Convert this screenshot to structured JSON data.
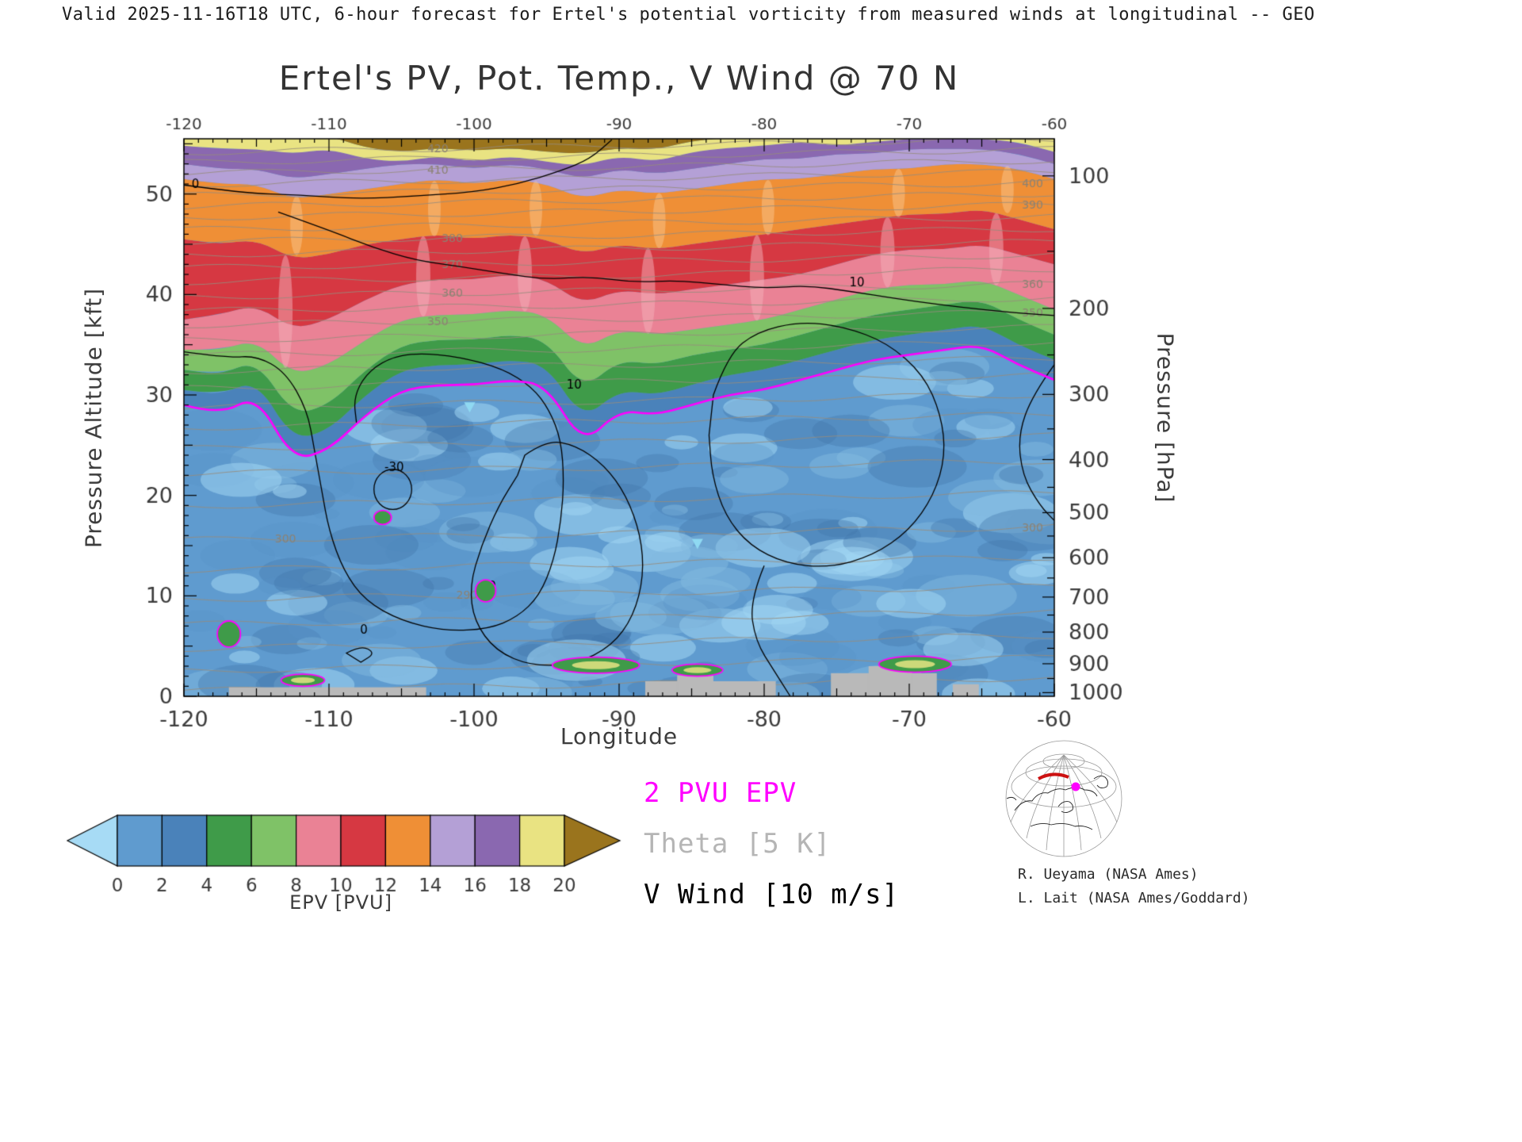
{
  "header": {
    "text": "Valid 2025-11-16T18 UTC, 6-hour forecast for Ertel's potential vorticity from measured winds at longitudinal -- GEO"
  },
  "chart": {
    "title": "Ertel's PV, Pot. Temp., V Wind @ 70 N",
    "xlabel": "Longitude",
    "ylabel_left": "Pressure Altitude [kft]",
    "ylabel_right": "Pressure [hPa]"
  },
  "legend": {
    "items": [
      {
        "label": "2 PVU EPV",
        "color": "#ff00ff"
      },
      {
        "label": "Theta [5 K]",
        "color": "#b5b5b5"
      },
      {
        "label": "V Wind [10 m/s]",
        "color": "#000000"
      }
    ]
  },
  "colorbar": {
    "label": "EPV [PVU]",
    "ticks": [
      0,
      2,
      4,
      6,
      8,
      10,
      12,
      14,
      16,
      18,
      20
    ]
  },
  "credits": {
    "line1": "R. Ueyama (NASA Ames)",
    "line2": "L. Lait (NASA Ames/Goddard)"
  },
  "chart_data": {
    "type": "heatmap",
    "title": "Ertel's PV, Pot. Temp., V Wind @ 70 N",
    "xlabel": "Longitude",
    "ylabel": "Pressure Altitude [kft]",
    "y2label": "Pressure [hPa]",
    "units": "PVU",
    "x_range": [
      -120,
      -60
    ],
    "y_range": [
      0,
      55.5
    ],
    "x_ticks": [
      -120,
      -110,
      -100,
      -90,
      -80,
      -70,
      -60
    ],
    "y_ticks": [
      0,
      10,
      20,
      30,
      40,
      50
    ],
    "y2_ticks": [
      100,
      200,
      300,
      400,
      500,
      600,
      700,
      800,
      900,
      1000
    ],
    "palette": {
      "below_0": "#a7dbf5",
      "0_2": "#5f9bcf",
      "2_4": "#4a82ba",
      "4_6": "#3f9b49",
      "6_8": "#7fc267",
      "8_10": "#ea8295",
      "10_12": "#d63842",
      "12_14": "#ef8f36",
      "14_16": "#b4a0d6",
      "16_18": "#8a68b0",
      "18_20": "#e9e382",
      "above_20": "#9a741d"
    },
    "tropopause_color": "#ff00ff",
    "terrain_color": "#b9b9b9",
    "longitudes": [
      -120,
      -117.5,
      -115,
      -112.5,
      -110,
      -107.5,
      -105,
      -102.5,
      -100,
      -97.5,
      -95,
      -92.5,
      -90,
      -87.5,
      -85,
      -82.5,
      -80,
      -77.5,
      -75,
      -72.5,
      -70,
      -67.5,
      -65,
      -62.5,
      -60
    ],
    "epv_contour_altitudes_kft": {
      "2": [
        29,
        28,
        30,
        23.5,
        24.5,
        28,
        30.5,
        31,
        31,
        31.5,
        31,
        25,
        28.5,
        28,
        29,
        30,
        30.5,
        31.5,
        32.5,
        33.5,
        34,
        34.5,
        35,
        33,
        31.5
      ],
      "4": [
        30.5,
        30,
        31.5,
        25.5,
        26.5,
        30,
        32.5,
        33,
        33,
        33.5,
        33,
        27.5,
        30.5,
        30,
        31,
        32,
        32.5,
        33.5,
        34.5,
        35.5,
        36,
        36.5,
        37,
        35,
        33.5
      ],
      "6": [
        32.5,
        32,
        33.5,
        28,
        29,
        32.5,
        35,
        35.5,
        35.5,
        36,
        35.5,
        30.5,
        33.5,
        33,
        34,
        34.5,
        35,
        36,
        37,
        38,
        38.5,
        39,
        39.5,
        37.5,
        36
      ],
      "8": [
        34.5,
        34.5,
        35.5,
        32,
        33,
        35.5,
        37.5,
        38,
        38,
        38.5,
        38,
        34.5,
        36.5,
        36,
        36.5,
        37,
        37.5,
        38.5,
        39.5,
        40.5,
        41,
        41,
        41.5,
        40,
        38.5
      ],
      "10": [
        37.5,
        38,
        39,
        36.5,
        37.5,
        39.5,
        41,
        41.5,
        41.5,
        42,
        41.5,
        39,
        40.5,
        40,
        40.5,
        41,
        41.5,
        42,
        43,
        44,
        44.5,
        44.5,
        45,
        44,
        43
      ],
      "12": [
        45.5,
        45,
        45.5,
        43.5,
        44,
        45,
        45.5,
        46,
        45.5,
        46,
        45.5,
        44,
        45,
        44.5,
        45,
        45.5,
        46,
        46.5,
        47,
        47.5,
        48,
        48,
        48.5,
        47.5,
        46.5
      ],
      "14": [
        51.5,
        51,
        51,
        49.5,
        50,
        50.5,
        51,
        51.5,
        51,
        51.5,
        51,
        49.5,
        50.5,
        50,
        50.5,
        51,
        51.5,
        51.5,
        52,
        52.5,
        52.5,
        53,
        53,
        52.5,
        51.5
      ],
      "16": [
        53,
        52.5,
        52.5,
        51.5,
        52,
        52.5,
        53,
        53,
        52.5,
        53,
        52.5,
        51.5,
        52.5,
        52,
        52.5,
        53,
        53.5,
        53.5,
        54,
        54,
        54.5,
        54.5,
        54.5,
        54,
        53
      ],
      "18": [
        54.8,
        54.5,
        54.5,
        54,
        54.5,
        53.5,
        53.2,
        53.8,
        53.2,
        53.8,
        53.2,
        52.8,
        53.8,
        53.2,
        54.2,
        54.6,
        54.8,
        55.2,
        54.8,
        55.2,
        55.5,
        55.5,
        55.5,
        55.2,
        54.2
      ],
      "20": [
        56,
        56,
        56,
        56,
        55.8,
        54.6,
        54.2,
        54.6,
        54.3,
        54.6,
        54.2,
        54,
        54.6,
        54.4,
        55.3,
        55.6,
        55.8,
        56,
        55.6,
        56,
        56,
        56,
        56,
        56,
        55.6
      ]
    },
    "theta_lines": {
      "interval_K": 5,
      "tilt_kft": 1.3,
      "lines": [
        {
          "theta": 270,
          "alt": 1.2
        },
        {
          "theta": 275,
          "alt": 3.2
        },
        {
          "theta": 280,
          "alt": 5.4
        },
        {
          "theta": 285,
          "alt": 7.8
        },
        {
          "theta": 290,
          "alt": 10.3
        },
        {
          "theta": 295,
          "alt": 13.2
        },
        {
          "theta": 300,
          "alt": 16.2
        },
        {
          "theta": 305,
          "alt": 19.6
        },
        {
          "theta": 310,
          "alt": 22.8
        },
        {
          "theta": 315,
          "alt": 25.3
        },
        {
          "theta": 320,
          "alt": 27.4
        },
        {
          "theta": 325,
          "alt": 29.4
        },
        {
          "theta": 330,
          "alt": 31.3
        },
        {
          "theta": 335,
          "alt": 33.0
        },
        {
          "theta": 340,
          "alt": 34.6
        },
        {
          "theta": 345,
          "alt": 36.1
        },
        {
          "theta": 350,
          "alt": 37.6
        },
        {
          "theta": 355,
          "alt": 39.0
        },
        {
          "theta": 360,
          "alt": 40.4
        },
        {
          "theta": 365,
          "alt": 41.9
        },
        {
          "theta": 370,
          "alt": 43.3
        },
        {
          "theta": 375,
          "alt": 44.6
        },
        {
          "theta": 380,
          "alt": 45.9
        },
        {
          "theta": 385,
          "alt": 47.1
        },
        {
          "theta": 390,
          "alt": 48.3
        },
        {
          "theta": 395,
          "alt": 49.4
        },
        {
          "theta": 400,
          "alt": 50.5
        },
        {
          "theta": 405,
          "alt": 51.6
        },
        {
          "theta": 410,
          "alt": 52.7
        },
        {
          "theta": 415,
          "alt": 53.8
        },
        {
          "theta": 420,
          "alt": 54.8
        }
      ],
      "labeled": [
        {
          "theta": 420,
          "lon": -102.5
        },
        {
          "theta": 410,
          "lon": -102.5
        },
        {
          "theta": 380,
          "lon": -101.5
        },
        {
          "theta": 370,
          "lon": -101.5
        },
        {
          "theta": 360,
          "lon": -101.5
        },
        {
          "theta": 350,
          "lon": -102.5
        },
        {
          "theta": 290,
          "lon": -100.5
        },
        {
          "theta": 300,
          "lon": -113
        },
        {
          "theta": 400,
          "lon": -61.5
        },
        {
          "theta": 390,
          "lon": -61.5
        },
        {
          "theta": 360,
          "lon": -61.5
        },
        {
          "theta": 350,
          "lon": -61.5
        },
        {
          "theta": 300,
          "lon": -61.5
        }
      ]
    },
    "wind_contours": {
      "interval_ms": 10,
      "lines": [
        {
          "label": "0",
          "label_at": [
            -119.2,
            50.6
          ],
          "pts": [
            [
              -120,
              50.9
            ],
            [
              -116,
              50.1
            ],
            [
              -112,
              49.9
            ],
            [
              -108,
              49.5
            ],
            [
              -104,
              49.8
            ],
            [
              -100,
              50.2
            ],
            [
              -97,
              51.0
            ],
            [
              -94,
              52.3
            ],
            [
              -92,
              53.5
            ],
            [
              -90.5,
              55.4
            ]
          ]
        },
        {
          "label": "10",
          "label_at": [
            -73.6,
            40.8
          ],
          "pts": [
            [
              -113.5,
              48.2
            ],
            [
              -110,
              46.4
            ],
            [
              -107,
              44.7
            ],
            [
              -104,
              43.4
            ],
            [
              -101,
              42.8
            ],
            [
              -98,
              42.1
            ],
            [
              -95,
              41.5
            ],
            [
              -92,
              41.8
            ],
            [
              -89,
              41.2
            ],
            [
              -86,
              41.4
            ],
            [
              -83,
              41.0
            ],
            [
              -80,
              40.6
            ],
            [
              -77,
              40.9
            ],
            [
              -74,
              40.3
            ],
            [
              -71,
              39.6
            ],
            [
              -68,
              39.0
            ],
            [
              -65,
              38.5
            ],
            [
              -62,
              38.1
            ],
            [
              -60,
              37.9
            ]
          ]
        },
        {
          "label": "10",
          "label_at": [
            -93.1,
            30.6
          ],
          "pts": [
            [
              -120,
              34.3
            ],
            [
              -117,
              33.7
            ],
            [
              -115,
              33.9
            ],
            [
              -113,
              32.3
            ],
            [
              -111.5,
              28.5
            ],
            [
              -111,
              24.5
            ],
            [
              -110.5,
              20.5
            ],
            [
              -110,
              16.5
            ],
            [
              -109,
              12.5
            ],
            [
              -107.5,
              9.5
            ],
            [
              -105,
              7.5
            ],
            [
              -102,
              6.5
            ],
            [
              -99,
              6.7
            ],
            [
              -97,
              7.9
            ],
            [
              -95.5,
              10
            ],
            [
              -94.5,
              13.5
            ],
            [
              -94,
              17.5
            ],
            [
              -93.8,
              21.5
            ],
            [
              -94,
              25.5
            ],
            [
              -94.8,
              28.5
            ],
            [
              -96,
              30.8
            ],
            [
              -98,
              32.6
            ],
            [
              -101,
              33.8
            ],
            [
              -104,
              34.2
            ],
            [
              -106,
              33.6
            ],
            [
              -107.5,
              32
            ],
            [
              -108.3,
              29.7
            ],
            [
              -108.1,
              27.2
            ]
          ]
        },
        {
          "label": "-30",
          "label_at": [
            -105.5,
            22.4
          ],
          "ellipse": [
            -105.6,
            20.6,
            1.3,
            2.0
          ]
        },
        {
          "label": "10",
          "label_at": [
            -99,
            10.6
          ],
          "closed": true,
          "pts": [
            [
              -96.5,
              24
            ],
            [
              -95,
              25.5
            ],
            [
              -93,
              25
            ],
            [
              -91,
              23
            ],
            [
              -89.5,
              20
            ],
            [
              -88.5,
              16
            ],
            [
              -88.3,
              12
            ],
            [
              -89,
              8
            ],
            [
              -90.5,
              5
            ],
            [
              -93,
              3.2
            ],
            [
              -96,
              3
            ],
            [
              -98.5,
              4.5
            ],
            [
              -100,
              7.5
            ],
            [
              -100.3,
              11
            ],
            [
              -99.5,
              15
            ],
            [
              -98.3,
              19
            ],
            [
              -97,
              22
            ]
          ]
        },
        {
          "closed": true,
          "pts": [
            [
              -83.5,
              30
            ],
            [
              -82.5,
              34
            ],
            [
              -80.5,
              36.3
            ],
            [
              -77.5,
              37.3
            ],
            [
              -74.5,
              36.8
            ],
            [
              -71.5,
              35.2
            ],
            [
              -69,
              32
            ],
            [
              -67.8,
              28
            ],
            [
              -67.5,
              24
            ],
            [
              -68.3,
              20
            ],
            [
              -70,
              16.5
            ],
            [
              -72.5,
              14
            ],
            [
              -75.5,
              12.8
            ],
            [
              -78.5,
              13.2
            ],
            [
              -81,
              15
            ],
            [
              -82.7,
              18
            ],
            [
              -83.6,
              22
            ],
            [
              -83.8,
              26
            ]
          ]
        },
        {
          "pts": [
            [
              -80,
              13
            ],
            [
              -81,
              9.5
            ],
            [
              -80.6,
              5.5
            ],
            [
              -79.3,
              2.5
            ],
            [
              -78.2,
              0
            ]
          ]
        },
        {
          "label": "0",
          "label_at": [
            -107.6,
            6.2
          ],
          "closed": true,
          "pts": [
            [
              -108.8,
              4.3
            ],
            [
              -107.8,
              5.1
            ],
            [
              -106.8,
              4.3
            ],
            [
              -107.8,
              3.4
            ]
          ]
        },
        {
          "pts": [
            [
              -60,
              33
            ],
            [
              -61.5,
              30
            ],
            [
              -62.5,
              26
            ],
            [
              -62.2,
              22
            ],
            [
              -61,
              19
            ],
            [
              -60,
              17.5
            ]
          ]
        }
      ]
    },
    "surface_terrain": [
      {
        "lon0": -116.9,
        "lon1": -103.3,
        "alt": 0.9
      },
      {
        "lon0": -88.2,
        "lon1": -79.2,
        "alt": 1.5
      },
      {
        "lon0": -86.0,
        "lon1": -83.5,
        "alt": 2.1
      },
      {
        "lon0": -75.4,
        "lon1": -68.1,
        "alt": 2.3
      },
      {
        "lon0": -72.8,
        "lon1": -69.8,
        "alt": 3.0
      },
      {
        "lon0": -67.0,
        "lon1": -65.2,
        "alt": 1.2
      }
    ],
    "low_level_pv_features": [
      {
        "lon": -91.6,
        "alt": 3.1,
        "w": 6,
        "h": 1.6
      },
      {
        "lon": -84.6,
        "alt": 2.6,
        "w": 3.5,
        "h": 1.2
      },
      {
        "lon": -69.6,
        "alt": 3.2,
        "w": 5,
        "h": 1.6
      },
      {
        "lon": -111.8,
        "alt": 1.6,
        "w": 3,
        "h": 1.2
      },
      {
        "lon": -116.9,
        "alt": 6.2,
        "w": 1.6,
        "h": 2.6
      },
      {
        "lon": -106.3,
        "alt": 17.8,
        "w": 1.2,
        "h": 1.4
      },
      {
        "lon": -99.2,
        "alt": 10.5,
        "w": 1.4,
        "h": 2.2
      }
    ],
    "markers": [
      [
        -100.3,
        28.8
      ],
      [
        -84.6,
        15.2
      ]
    ]
  }
}
